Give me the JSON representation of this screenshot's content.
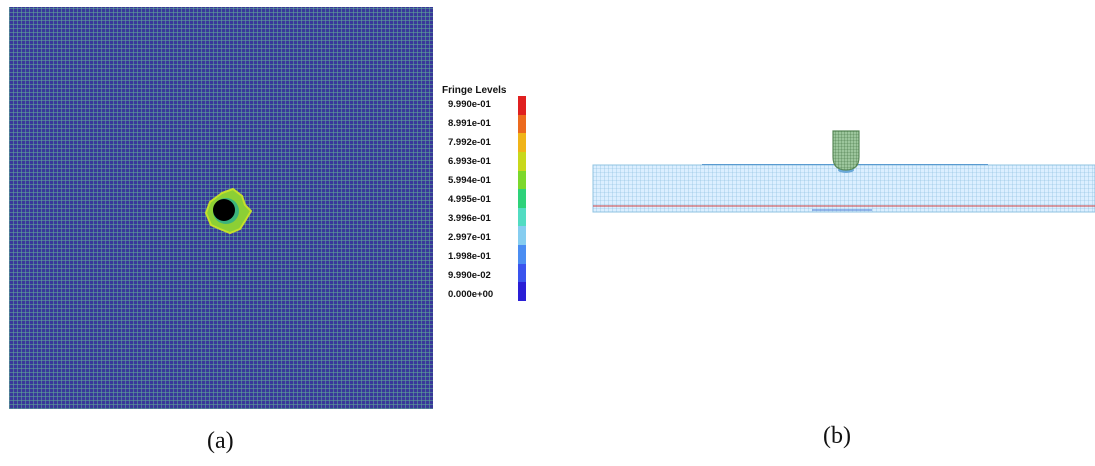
{
  "panel_a": {
    "caption": "(a)",
    "legend": {
      "title": "Fringe Levels",
      "levels": [
        "9.990e-01",
        "8.991e-01",
        "7.992e-01",
        "6.993e-01",
        "5.994e-01",
        "4.995e-01",
        "3.996e-01",
        "2.997e-01",
        "1.998e-01",
        "9.990e-02",
        "0.000e+00"
      ],
      "colors": [
        "#e02020",
        "#ec6a1e",
        "#f0b419",
        "#c8d81c",
        "#7cd82c",
        "#2ed27a",
        "#52dcc2",
        "#86cdf0",
        "#4b8df2",
        "#3a54ee",
        "#2a1fd6"
      ]
    },
    "colors": {
      "background": "#39389a",
      "mesh": "#5faa96",
      "hole": "#000000",
      "ring": "#9ed82c"
    }
  },
  "panel_b": {
    "caption": "(b)",
    "colors": {
      "plate": "#a8d4ec",
      "mesh": "#7fb8da",
      "interface": "#d04040",
      "projectile": "#5a8a5a"
    }
  }
}
